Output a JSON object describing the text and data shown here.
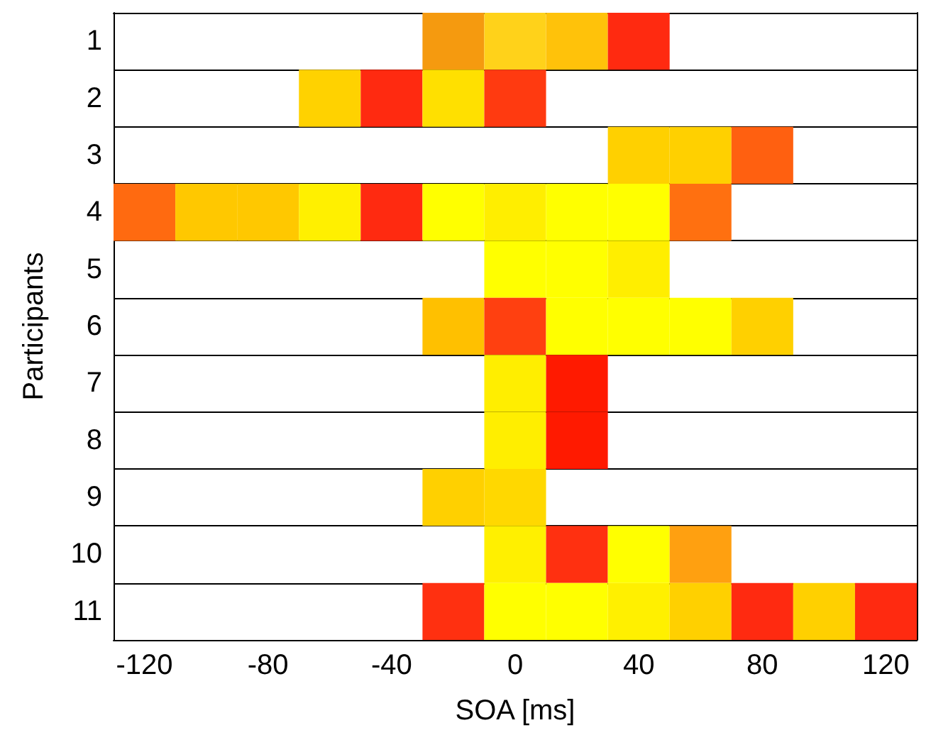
{
  "chart_data": {
    "type": "bar",
    "orientation": "horizontal",
    "xlabel": "SOA [ms]",
    "ylabel": "Participants",
    "categories": [
      "1",
      "2",
      "3",
      "4",
      "5",
      "6",
      "7",
      "8",
      "9",
      "10",
      "11"
    ],
    "xlim": [
      -130,
      130
    ],
    "xticks": [
      -120,
      -80,
      -40,
      0,
      40,
      80,
      120
    ],
    "grid": "y",
    "series": [
      {
        "base": [
          null,
          null,
          null,
          -130,
          null,
          null,
          null,
          null,
          null,
          null,
          null
        ],
        "values": [
          null,
          null,
          null,
          20,
          null,
          null,
          null,
          null,
          null,
          null,
          null
        ],
        "colors": [
          null,
          null,
          null,
          "#ff6a10",
          null,
          null,
          null,
          null,
          null,
          null,
          null
        ]
      },
      {
        "base": [
          null,
          null,
          null,
          -110,
          null,
          null,
          null,
          null,
          null,
          null,
          null
        ],
        "values": [
          null,
          null,
          null,
          20,
          null,
          null,
          null,
          null,
          null,
          null,
          null
        ],
        "colors": [
          null,
          null,
          null,
          "#ffc800",
          null,
          null,
          null,
          null,
          null,
          null,
          null
        ]
      },
      {
        "base": [
          null,
          null,
          null,
          -90,
          null,
          null,
          null,
          null,
          null,
          null,
          null
        ],
        "values": [
          null,
          null,
          null,
          20,
          null,
          null,
          null,
          null,
          null,
          null,
          null
        ],
        "colors": [
          null,
          null,
          null,
          "#ffc800",
          null,
          null,
          null,
          null,
          null,
          null,
          null
        ]
      },
      {
        "base": [
          null,
          -70,
          null,
          -70,
          null,
          null,
          null,
          null,
          null,
          null,
          null
        ],
        "values": [
          null,
          20,
          null,
          20,
          null,
          null,
          null,
          null,
          null,
          null,
          null
        ],
        "colors": [
          null,
          "#ffd200",
          null,
          "#fff000",
          null,
          null,
          null,
          null,
          null,
          null,
          null
        ]
      },
      {
        "base": [
          null,
          -50,
          null,
          -50,
          null,
          null,
          null,
          null,
          null,
          null,
          null
        ],
        "values": [
          null,
          20,
          null,
          20,
          null,
          null,
          null,
          null,
          null,
          null,
          null
        ],
        "colors": [
          null,
          "#ff2a10",
          null,
          "#ff2a10",
          null,
          null,
          null,
          null,
          null,
          null,
          null
        ]
      },
      {
        "base": [
          -30,
          -30,
          null,
          -30,
          null,
          -30,
          null,
          null,
          -30,
          null,
          -30
        ],
        "values": [
          20,
          20,
          null,
          20,
          null,
          20,
          null,
          null,
          20,
          null,
          20
        ],
        "colors": [
          "#f59a0f",
          "#ffe000",
          null,
          "#ffff00",
          null,
          "#ffc000",
          null,
          null,
          "#ffd000",
          null,
          "#ff3010"
        ]
      },
      {
        "base": [
          -10,
          -10,
          null,
          -10,
          -10,
          -10,
          -10,
          -10,
          -10,
          -10,
          -10
        ],
        "values": [
          20,
          20,
          null,
          20,
          20,
          20,
          20,
          20,
          20,
          20,
          20
        ],
        "colors": [
          "#ffd21a",
          "#ff3a10",
          null,
          "#ffee00",
          "#ffff00",
          "#ff4010",
          "#ffee00",
          "#ffee00",
          "#ffd800",
          "#fff000",
          "#ffff00"
        ]
      },
      {
        "base": [
          10,
          null,
          null,
          10,
          10,
          10,
          10,
          10,
          null,
          10,
          10
        ],
        "values": [
          20,
          null,
          null,
          20,
          20,
          20,
          20,
          20,
          null,
          20,
          20
        ],
        "colors": [
          "#ffc20a",
          null,
          null,
          "#ffff00",
          "#ffff00",
          "#ffff00",
          "#ff1a00",
          "#ff1a00",
          null,
          "#ff3010",
          "#ffff00"
        ]
      },
      {
        "base": [
          30,
          null,
          30,
          30,
          30,
          30,
          null,
          null,
          null,
          30,
          30
        ],
        "values": [
          20,
          null,
          20,
          20,
          20,
          20,
          null,
          null,
          null,
          20,
          20
        ],
        "colors": [
          "#ff2a10",
          null,
          "#ffd000",
          "#ffff00",
          "#ffee00",
          "#ffff00",
          null,
          null,
          null,
          "#ffff00",
          "#fff000"
        ]
      },
      {
        "base": [
          null,
          null,
          50,
          50,
          null,
          50,
          null,
          null,
          null,
          50,
          50
        ],
        "values": [
          null,
          null,
          20,
          20,
          null,
          20,
          null,
          null,
          null,
          20,
          20
        ],
        "colors": [
          null,
          null,
          "#ffd000",
          "#ff7010",
          null,
          "#ffff00",
          null,
          null,
          null,
          "#ffa010",
          "#ffd000"
        ]
      },
      {
        "base": [
          null,
          null,
          70,
          null,
          null,
          70,
          null,
          null,
          null,
          null,
          70
        ],
        "values": [
          null,
          null,
          20,
          null,
          null,
          20,
          null,
          null,
          null,
          null,
          20
        ],
        "colors": [
          null,
          null,
          "#ff6010",
          null,
          null,
          "#ffd000",
          null,
          null,
          null,
          null,
          "#ff2a10"
        ]
      },
      {
        "base": [
          null,
          null,
          null,
          null,
          null,
          null,
          null,
          null,
          null,
          null,
          90
        ],
        "values": [
          null,
          null,
          null,
          null,
          null,
          null,
          null,
          null,
          null,
          null,
          20
        ],
        "colors": [
          null,
          null,
          null,
          null,
          null,
          null,
          null,
          null,
          null,
          null,
          "#ffd000"
        ]
      },
      {
        "base": [
          null,
          null,
          null,
          null,
          null,
          null,
          null,
          null,
          null,
          null,
          110
        ],
        "values": [
          null,
          null,
          null,
          null,
          null,
          null,
          null,
          null,
          null,
          null,
          20
        ],
        "colors": [
          null,
          null,
          null,
          null,
          null,
          null,
          null,
          null,
          null,
          null,
          "#ff2a10"
        ]
      }
    ]
  }
}
